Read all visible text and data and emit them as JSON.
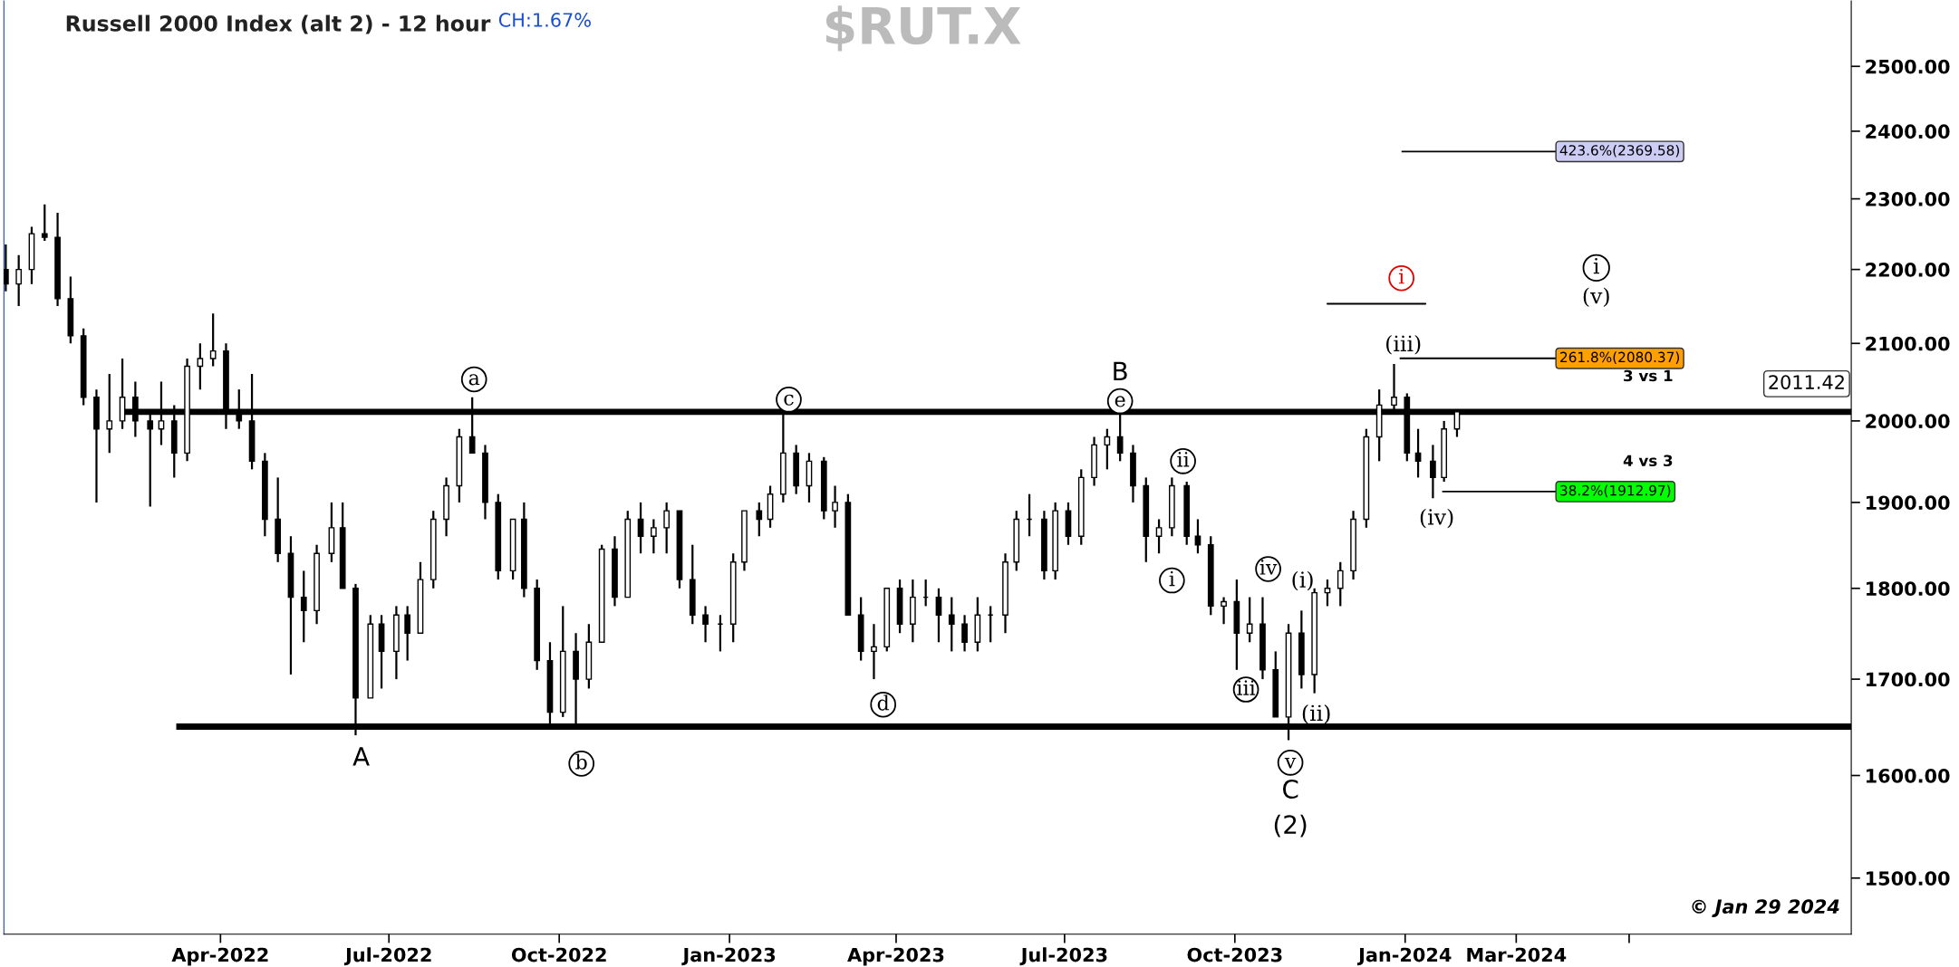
{
  "chart_data": {
    "type": "candlestick",
    "title": "Russell 2000 Index (alt 2) - 12 hour",
    "subtitle": "$RUT.X",
    "x": [
      "2021-12-06",
      "2021-12-13",
      "2021-12-20",
      "2021-12-27",
      "2022-01-03",
      "2022-01-10",
      "2022-01-17",
      "2022-01-24",
      "2022-01-31",
      "2022-02-07",
      "2022-02-14",
      "2022-02-22",
      "2022-02-28",
      "2022-03-07",
      "2022-03-14",
      "2022-03-21",
      "2022-03-28",
      "2022-04-04",
      "2022-04-11",
      "2022-04-18",
      "2022-04-25",
      "2022-05-02",
      "2022-05-09",
      "2022-05-16",
      "2022-05-23",
      "2022-05-31",
      "2022-06-06",
      "2022-06-13",
      "2022-06-21",
      "2022-06-27",
      "2022-07-05",
      "2022-07-11",
      "2022-07-18",
      "2022-07-25",
      "2022-08-01",
      "2022-08-08",
      "2022-08-15",
      "2022-08-22",
      "2022-08-29",
      "2022-09-06",
      "2022-09-12",
      "2022-09-19",
      "2022-09-26",
      "2022-10-03",
      "2022-10-10",
      "2022-10-17",
      "2022-10-24",
      "2022-10-31",
      "2022-11-07",
      "2022-11-14",
      "2022-11-21",
      "2022-11-28",
      "2022-12-05",
      "2022-12-12",
      "2022-12-19",
      "2022-12-27",
      "2023-01-03",
      "2023-01-09",
      "2023-01-17",
      "2023-01-23",
      "2023-01-30",
      "2023-02-06",
      "2023-02-13",
      "2023-02-21",
      "2023-02-27",
      "2023-03-06",
      "2023-03-13",
      "2023-03-20",
      "2023-03-27",
      "2023-04-03",
      "2023-04-10",
      "2023-04-17",
      "2023-04-24",
      "2023-05-01",
      "2023-05-08",
      "2023-05-15",
      "2023-05-22",
      "2023-05-30",
      "2023-06-05",
      "2023-06-12",
      "2023-06-20",
      "2023-06-26",
      "2023-07-03",
      "2023-07-10",
      "2023-07-17",
      "2023-07-24",
      "2023-07-31",
      "2023-08-07",
      "2023-08-14",
      "2023-08-21",
      "2023-08-28",
      "2023-09-05",
      "2023-09-11",
      "2023-09-18",
      "2023-09-25",
      "2023-10-02",
      "2023-10-09",
      "2023-10-16",
      "2023-10-23",
      "2023-10-30",
      "2023-11-06",
      "2023-11-13",
      "2023-11-20",
      "2023-11-27",
      "2023-12-04",
      "2023-12-11",
      "2023-12-18",
      "2023-12-26",
      "2024-01-02",
      "2024-01-08",
      "2024-01-16",
      "2024-01-22",
      "2024-01-29"
    ],
    "ohlc": [
      [
        2200,
        2235,
        2170,
        2180
      ],
      [
        2180,
        2220,
        2150,
        2200
      ],
      [
        2200,
        2260,
        2180,
        2250
      ],
      [
        2250,
        2292,
        2240,
        2245
      ],
      [
        2245,
        2280,
        2150,
        2160
      ],
      [
        2160,
        2190,
        2100,
        2110
      ],
      [
        2110,
        2120,
        2020,
        2030
      ],
      [
        2030,
        2040,
        1900,
        1990
      ],
      [
        1990,
        2060,
        1960,
        2000
      ],
      [
        2000,
        2080,
        1990,
        2030
      ],
      [
        2030,
        2050,
        1980,
        2000
      ],
      [
        2000,
        2010,
        1895,
        1990
      ],
      [
        1990,
        2050,
        1970,
        2000
      ],
      [
        2000,
        2020,
        1930,
        1960
      ],
      [
        1960,
        2080,
        1950,
        2070
      ],
      [
        2070,
        2100,
        2040,
        2080
      ],
      [
        2080,
        2140,
        2070,
        2090
      ],
      [
        2090,
        2100,
        1990,
        2010
      ],
      [
        2010,
        2040,
        1990,
        2000
      ],
      [
        2000,
        2060,
        1940,
        1950
      ],
      [
        1950,
        1960,
        1860,
        1880
      ],
      [
        1880,
        1930,
        1830,
        1840
      ],
      [
        1840,
        1860,
        1705,
        1790
      ],
      [
        1790,
        1820,
        1740,
        1775
      ],
      [
        1775,
        1850,
        1760,
        1840
      ],
      [
        1840,
        1900,
        1830,
        1870
      ],
      [
        1870,
        1900,
        1800,
        1800
      ],
      [
        1800,
        1805,
        1641,
        1680
      ],
      [
        1680,
        1770,
        1680,
        1760
      ],
      [
        1760,
        1770,
        1690,
        1730
      ],
      [
        1730,
        1780,
        1700,
        1770
      ],
      [
        1770,
        1780,
        1720,
        1750
      ],
      [
        1750,
        1830,
        1750,
        1810
      ],
      [
        1810,
        1890,
        1800,
        1880
      ],
      [
        1880,
        1930,
        1860,
        1920
      ],
      [
        1920,
        1990,
        1900,
        1980
      ],
      [
        1980,
        2030,
        1960,
        1960
      ],
      [
        1960,
        1970,
        1880,
        1900
      ],
      [
        1900,
        1910,
        1810,
        1820
      ],
      [
        1820,
        1880,
        1810,
        1880
      ],
      [
        1880,
        1900,
        1790,
        1800
      ],
      [
        1800,
        1810,
        1710,
        1720
      ],
      [
        1720,
        1740,
        1650,
        1665
      ],
      [
        1665,
        1780,
        1660,
        1730
      ],
      [
        1730,
        1750,
        1650,
        1700
      ],
      [
        1700,
        1760,
        1690,
        1740
      ],
      [
        1740,
        1850,
        1740,
        1845
      ],
      [
        1845,
        1860,
        1780,
        1790
      ],
      [
        1790,
        1890,
        1790,
        1880
      ],
      [
        1880,
        1900,
        1840,
        1860
      ],
      [
        1860,
        1880,
        1840,
        1870
      ],
      [
        1870,
        1900,
        1840,
        1890
      ],
      [
        1890,
        1890,
        1800,
        1810
      ],
      [
        1810,
        1850,
        1760,
        1770
      ],
      [
        1770,
        1780,
        1740,
        1760
      ],
      [
        1760,
        1770,
        1730,
        1760
      ],
      [
        1760,
        1840,
        1740,
        1830
      ],
      [
        1830,
        1890,
        1820,
        1890
      ],
      [
        1890,
        1900,
        1860,
        1880
      ],
      [
        1880,
        1920,
        1870,
        1910
      ],
      [
        1910,
        2010,
        1900,
        1960
      ],
      [
        1960,
        1970,
        1910,
        1920
      ],
      [
        1920,
        1960,
        1900,
        1950
      ],
      [
        1950,
        1955,
        1880,
        1890
      ],
      [
        1890,
        1920,
        1870,
        1900
      ],
      [
        1900,
        1910,
        1770,
        1770
      ],
      [
        1770,
        1790,
        1720,
        1730
      ],
      [
        1730,
        1760,
        1700,
        1735
      ],
      [
        1735,
        1800,
        1730,
        1800
      ],
      [
        1800,
        1810,
        1750,
        1760
      ],
      [
        1760,
        1810,
        1740,
        1790
      ],
      [
        1790,
        1810,
        1780,
        1790
      ],
      [
        1790,
        1800,
        1740,
        1770
      ],
      [
        1770,
        1790,
        1730,
        1760
      ],
      [
        1760,
        1770,
        1730,
        1740
      ],
      [
        1740,
        1790,
        1730,
        1770
      ],
      [
        1770,
        1780,
        1740,
        1770
      ],
      [
        1770,
        1840,
        1750,
        1830
      ],
      [
        1830,
        1890,
        1820,
        1880
      ],
      [
        1880,
        1910,
        1860,
        1880
      ],
      [
        1880,
        1890,
        1810,
        1820
      ],
      [
        1820,
        1900,
        1810,
        1890
      ],
      [
        1890,
        1900,
        1850,
        1860
      ],
      [
        1860,
        1940,
        1850,
        1930
      ],
      [
        1930,
        1980,
        1920,
        1970
      ],
      [
        1970,
        1990,
        1940,
        1980
      ],
      [
        1980,
        2010,
        1950,
        1960
      ],
      [
        1960,
        1970,
        1900,
        1920
      ],
      [
        1920,
        1930,
        1830,
        1860
      ],
      [
        1860,
        1880,
        1840,
        1870
      ],
      [
        1870,
        1930,
        1860,
        1920
      ],
      [
        1920,
        1925,
        1850,
        1860
      ],
      [
        1860,
        1880,
        1840,
        1850
      ],
      [
        1850,
        1860,
        1770,
        1780
      ],
      [
        1780,
        1790,
        1760,
        1785
      ],
      [
        1785,
        1810,
        1710,
        1750
      ],
      [
        1750,
        1790,
        1740,
        1760
      ],
      [
        1760,
        1790,
        1700,
        1710
      ],
      [
        1710,
        1730,
        1660,
        1660
      ],
      [
        1660,
        1760,
        1636,
        1750
      ],
      [
        1750,
        1775,
        1690,
        1705
      ],
      [
        1705,
        1800,
        1685,
        1795
      ],
      [
        1795,
        1810,
        1780,
        1800
      ],
      [
        1800,
        1830,
        1780,
        1820
      ],
      [
        1820,
        1890,
        1810,
        1880
      ],
      [
        1880,
        1990,
        1870,
        1980
      ],
      [
        1980,
        2040,
        1950,
        2020
      ],
      [
        2020,
        2073,
        2010,
        2030
      ],
      [
        2030,
        2035,
        1950,
        1960
      ],
      [
        1960,
        1990,
        1930,
        1950
      ],
      [
        1950,
        1970,
        1905,
        1930
      ],
      [
        1930,
        2000,
        1925,
        1990
      ],
      [
        1990,
        2013,
        1980,
        2011.42
      ]
    ],
    "color": "#000000",
    "log": true,
    "xlim": [
      "2021-12-05",
      "2024-08-29"
    ],
    "xticks": [
      {
        "value": "2022-04-01",
        "label": "Apr-2022"
      },
      {
        "value": "2022-07-01",
        "label": "Jul-2022"
      },
      {
        "value": "2022-10-01",
        "label": "Oct-2022"
      },
      {
        "value": "2023-01-01",
        "label": "Jan-2023"
      },
      {
        "value": "2023-04-01",
        "label": "Apr-2023"
      },
      {
        "value": "2023-07-01",
        "label": "Jul-2023"
      },
      {
        "value": "2023-10-01",
        "label": "Oct-2023"
      },
      {
        "value": "2024-01-01",
        "label": "Jan-2024"
      },
      {
        "value": "2024-03-01",
        "label": "Mar-2024"
      },
      {
        "value": "2024-05-01",
        "label": null
      }
    ],
    "ylim": [
      1448,
      2605
    ],
    "yticks": [
      {
        "value": 1500,
        "label": "1500.00"
      },
      {
        "value": 1600,
        "label": "1600.00"
      },
      {
        "value": 1700,
        "label": "1700.00"
      },
      {
        "value": 1800,
        "label": "1800.00"
      },
      {
        "value": 1900,
        "label": "1900.00"
      },
      {
        "value": 2000,
        "label": "2000.00"
      },
      {
        "value": 2100,
        "label": "2100.00"
      },
      {
        "value": 2200,
        "label": "2200.00"
      },
      {
        "value": 2300,
        "label": "2300.00"
      },
      {
        "value": 2400,
        "label": "2400.00"
      },
      {
        "value": 2500,
        "label": "2500.00"
      }
    ],
    "ref_lines": [
      {
        "axis": "y",
        "value": 2011.42,
        "label": "2011.42"
      },
      {
        "axis": "y",
        "value": 1650,
        "label": null
      },
      {
        "axis": "y",
        "value": 2369.58,
        "label": "423.6%(2369.58)"
      },
      {
        "axis": "y",
        "value": 2080.37,
        "label": "261.8%(2080.37)"
      },
      {
        "axis": "y",
        "value": 1912.97,
        "label": "38.2%(1912.97)"
      }
    ],
    "series": [
      {
        "type": "line",
        "x": [
          "2023-11-20",
          "2024-01-12"
        ],
        "values": [
          2153,
          2153
        ],
        "color": "#000000"
      }
    ],
    "annotations": [
      "CH:1.67%",
      "3 vs 1",
      "4 vs 3",
      "i",
      "(v)",
      "© Jan 29 2024",
      "A",
      "B",
      "C",
      "(2)",
      "(i)",
      "(ii)",
      "(iii)",
      "(iv)",
      {
        "text": "a",
        "x": "2022-08-16",
        "y": 2053
      },
      {
        "text": "b",
        "x": "2022-10-13",
        "y": 1612
      },
      {
        "text": "c",
        "x": "2023-02-02",
        "y": 2027
      },
      {
        "text": "d",
        "x": "2023-03-25",
        "y": 1673
      },
      {
        "text": "e",
        "x": "2023-07-31",
        "y": 2025
      },
      {
        "text": "i",
        "x": "2023-08-28",
        "y": 1809
      },
      {
        "text": "ii",
        "x": "2023-09-03",
        "y": 1950
      },
      {
        "text": "iii",
        "x": "2023-10-07",
        "y": 1689
      },
      {
        "text": "iv",
        "x": "2023-10-19",
        "y": 1822
      },
      {
        "text": "v",
        "x": "2023-10-31",
        "y": 1613
      },
      {
        "text": "i",
        "x": "2023-12-30",
        "y": 2188
      }
    ]
  }
}
